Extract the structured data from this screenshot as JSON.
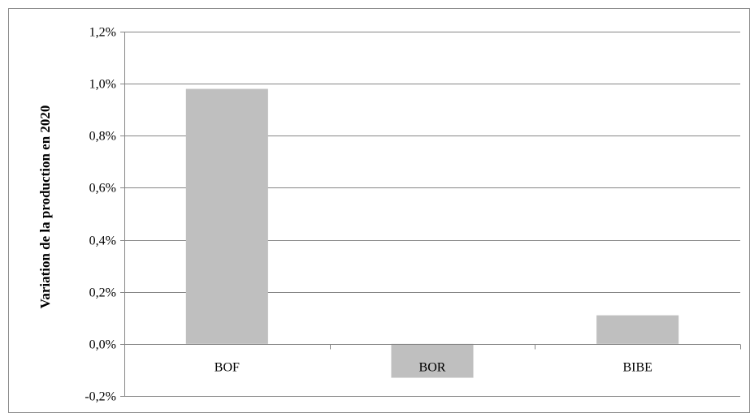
{
  "chart_data": {
    "type": "bar",
    "title": "",
    "xlabel": "",
    "ylabel": "Variation de la production en 2020",
    "categories": [
      "BOF",
      "BOR",
      "BIBE"
    ],
    "values": [
      0.0098,
      -0.0013,
      0.0011
    ],
    "ylim": [
      -0.002,
      0.012
    ],
    "yticks": [
      -0.002,
      0.0,
      0.002,
      0.004,
      0.006,
      0.008,
      0.01,
      0.012
    ],
    "ytick_labels": [
      "-0,2%",
      "0,0%",
      "0,2%",
      "0,4%",
      "0,6%",
      "0,8%",
      "1,0%",
      "1,2%"
    ],
    "grid": true,
    "legend": "none",
    "colors": {
      "bar": "#bfbfbf",
      "gridline": "#868686",
      "axis": "#868686",
      "border": "#8c8c8c"
    }
  }
}
